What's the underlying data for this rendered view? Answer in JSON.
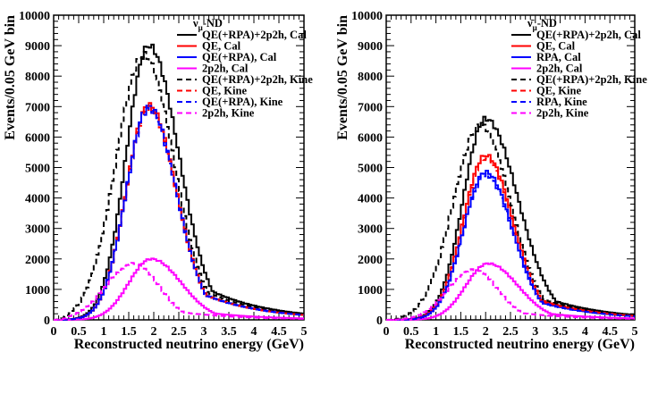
{
  "chart_data": [
    {
      "type": "line",
      "title": "νμ-ND",
      "legend_title": "ν",
      "legend_title_sub": "μ",
      "legend_title_suffix": "-ND",
      "xlabel": "Reconstructed neutrino energy (GeV)",
      "ylabel": "Events/0.05 GeV bin",
      "xlim": [
        0,
        5
      ],
      "ylim": [
        0,
        10000
      ],
      "xticks": [
        "0",
        "0.5",
        "1",
        "1.5",
        "2",
        "2.5",
        "3",
        "3.5",
        "4",
        "4.5",
        "5"
      ],
      "yticks": [
        "0",
        "1000",
        "2000",
        "3000",
        "4000",
        "5000",
        "6000",
        "7000",
        "8000",
        "9000",
        "10000"
      ],
      "legend_position": "top-right",
      "series": [
        {
          "name": "QE(+RPA)+2p2h, Cal",
          "color": "#000000",
          "style": "solid",
          "peak_x": 1.9,
          "peak_y": 9000,
          "sigma_left": 0.45,
          "sigma_right": 0.6,
          "tail": 0.3
        },
        {
          "name": "QE, Cal",
          "color": "#ff0000",
          "style": "solid",
          "peak_x": 1.9,
          "peak_y": 7050,
          "sigma_left": 0.45,
          "sigma_right": 0.55,
          "tail": 0.3
        },
        {
          "name": "QE(+RPA), Cal",
          "color": "#0000ff",
          "style": "solid",
          "peak_x": 1.9,
          "peak_y": 7000,
          "sigma_left": 0.45,
          "sigma_right": 0.55,
          "tail": 0.3
        },
        {
          "name": "2p2h, Cal",
          "color": "#ff00ff",
          "style": "solid",
          "peak_x": 1.95,
          "peak_y": 2000,
          "sigma_left": 0.45,
          "sigma_right": 0.6,
          "tail": 0.3
        },
        {
          "name": "QE(+RPA)+2p2h, Kine",
          "color": "#000000",
          "style": "dashed",
          "peak_x": 1.8,
          "peak_y": 8700,
          "sigma_left": 0.55,
          "sigma_right": 0.6,
          "tail": 0.3
        },
        {
          "name": "QE, Kine",
          "color": "#ff0000",
          "style": "dashed",
          "peak_x": 1.9,
          "peak_y": 6950,
          "sigma_left": 0.45,
          "sigma_right": 0.55,
          "tail": 0.3
        },
        {
          "name": "QE(+RPA), Kine",
          "color": "#0000ff",
          "style": "dashed",
          "peak_x": 1.9,
          "peak_y": 6900,
          "sigma_left": 0.45,
          "sigma_right": 0.55,
          "tail": 0.3
        },
        {
          "name": "2p2h, Kine",
          "color": "#ff00ff",
          "style": "dashed",
          "peak_x": 1.6,
          "peak_y": 1850,
          "sigma_left": 0.55,
          "sigma_right": 0.5,
          "tail": 0.3
        }
      ]
    },
    {
      "type": "line",
      "title": "ν̄μ-ND",
      "legend_title": "ν̄",
      "legend_title_sub": "μ",
      "legend_title_suffix": "-ND",
      "xlabel": "Reconstructed neutrino energy (GeV)",
      "ylabel": "Events/0.05 GeV bin",
      "xlim": [
        0,
        5
      ],
      "ylim": [
        0,
        10000
      ],
      "xticks": [
        "0",
        "0.5",
        "1",
        "1.5",
        "2",
        "2.5",
        "3",
        "3.5",
        "4",
        "4.5",
        "5"
      ],
      "yticks": [
        "0",
        "1000",
        "2000",
        "3000",
        "4000",
        "5000",
        "6000",
        "7000",
        "8000",
        "9000",
        "10000"
      ],
      "legend_position": "top-right",
      "series": [
        {
          "name": "QE(+RPA)+2p2h, Cal",
          "color": "#000000",
          "style": "solid",
          "peak_x": 2.0,
          "peak_y": 6600,
          "sigma_left": 0.45,
          "sigma_right": 0.65,
          "tail": 0.3
        },
        {
          "name": "QE, Cal",
          "color": "#ff0000",
          "style": "solid",
          "peak_x": 2.0,
          "peak_y": 5400,
          "sigma_left": 0.45,
          "sigma_right": 0.55,
          "tail": 0.3
        },
        {
          "name": "RPA, Cal",
          "color": "#0000ff",
          "style": "solid",
          "peak_x": 2.0,
          "peak_y": 4850,
          "sigma_left": 0.45,
          "sigma_right": 0.55,
          "tail": 0.3
        },
        {
          "name": "2p2h, Cal",
          "color": "#ff00ff",
          "style": "solid",
          "peak_x": 2.05,
          "peak_y": 1850,
          "sigma_left": 0.45,
          "sigma_right": 0.6,
          "tail": 0.3
        },
        {
          "name": "QE(+RPA)+2p2h, Kine",
          "color": "#000000",
          "style": "dashed",
          "peak_x": 1.9,
          "peak_y": 6400,
          "sigma_left": 0.55,
          "sigma_right": 0.6,
          "tail": 0.3
        },
        {
          "name": "QE, Kine",
          "color": "#ff0000",
          "style": "dashed",
          "peak_x": 2.0,
          "peak_y": 5300,
          "sigma_left": 0.45,
          "sigma_right": 0.55,
          "tail": 0.3
        },
        {
          "name": "RPA, Kine",
          "color": "#0000ff",
          "style": "dashed",
          "peak_x": 2.0,
          "peak_y": 4750,
          "sigma_left": 0.45,
          "sigma_right": 0.55,
          "tail": 0.3
        },
        {
          "name": "2p2h, Kine",
          "color": "#ff00ff",
          "style": "dashed",
          "peak_x": 1.75,
          "peak_y": 1650,
          "sigma_left": 0.5,
          "sigma_right": 0.5,
          "tail": 0.3
        }
      ]
    }
  ]
}
